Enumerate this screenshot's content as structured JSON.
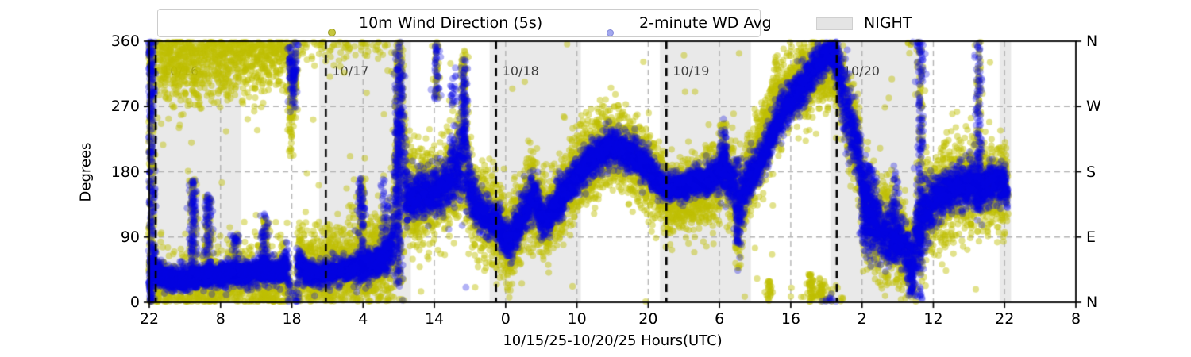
{
  "figure": {
    "xlabel": "10/15/25-10/20/25  Hours(UTC)",
    "ylabel": "Degrees",
    "legend": [
      {
        "label": "10m Wind Direction (5s)",
        "marker_color": "#c6c63e",
        "marker_edge": "#9a9a22"
      },
      {
        "label": "2-minute WD Avg",
        "marker_color": "#a3a8ef",
        "marker_edge": "#8288d8"
      },
      {
        "label": "NIGHT",
        "patch_color": "#e4e4e4",
        "patch_edge": "#cfcfcf"
      }
    ]
  },
  "chart_data": {
    "type": "scatter",
    "title": "",
    "xlabel": "10/15/25-10/20/25  Hours(UTC)",
    "ylabel": "Degrees",
    "x_start": "10/15/25 22:00 UTC",
    "x_span_hours": [
      0,
      130
    ],
    "x_tick_hours": [
      0,
      10,
      20,
      30,
      40,
      50,
      60,
      70,
      80,
      90,
      100,
      110,
      120,
      130
    ],
    "x_tick_labels": [
      "22",
      "8",
      "18",
      "4",
      "14",
      "0",
      "10",
      "20",
      "6",
      "16",
      "2",
      "12",
      "22",
      "8"
    ],
    "ylim": [
      0,
      360
    ],
    "y_ticks": [
      0,
      90,
      180,
      270,
      360
    ],
    "y_tick_labels": [
      "0",
      "90",
      "180",
      "270",
      "360"
    ],
    "right_axis_labels": [
      "N",
      "E",
      "S",
      "W",
      "N"
    ],
    "grid": true,
    "legend_position": "top",
    "series": [
      {
        "name": "10m Wind Direction (5s)",
        "style": "raw-scatter"
      },
      {
        "name": "2-minute WD Avg",
        "style": "avg-scatter"
      }
    ],
    "night_regions_hours": [
      [
        0,
        12.9
      ],
      [
        23.85,
        36.7
      ],
      [
        47.75,
        60.55
      ],
      [
        71.65,
        84.4
      ],
      [
        95.55,
        108.3
      ],
      [
        119.3,
        120.9
      ]
    ],
    "date_lines": [
      {
        "hour": 0.9,
        "label": "10/16"
      },
      {
        "hour": 24.77,
        "label": "10/17"
      },
      {
        "hour": 48.65,
        "label": "10/18"
      },
      {
        "hour": 72.55,
        "label": "10/19"
      },
      {
        "hour": 96.45,
        "label": "10/20"
      }
    ],
    "data_end_hour": 120.4,
    "wd_avg_waypoints": [
      [
        0.0,
        350,
        20,
        35,
        0
      ],
      [
        0.5,
        45,
        12,
        40,
        -30
      ],
      [
        2,
        35,
        8,
        38,
        -45
      ],
      [
        4,
        32,
        8,
        38,
        -48
      ],
      [
        6,
        34,
        8,
        38,
        -45
      ],
      [
        8,
        36,
        8,
        38,
        -45
      ],
      [
        10,
        38,
        8,
        38,
        -45
      ],
      [
        12,
        40,
        8,
        38,
        -42
      ],
      [
        14,
        40,
        8,
        38,
        -40
      ],
      [
        16,
        46,
        9,
        38,
        -42
      ],
      [
        18,
        42,
        9,
        36,
        -40
      ],
      [
        19.4,
        55,
        12,
        36,
        -30
      ],
      [
        19.85,
        300,
        26,
        34,
        0
      ],
      [
        20.5,
        315,
        22,
        32,
        0
      ],
      [
        20.9,
        55,
        12,
        30,
        0
      ],
      [
        22,
        42,
        8,
        28,
        0
      ],
      [
        24,
        38,
        8,
        28,
        0
      ],
      [
        26,
        43,
        8,
        28,
        0
      ],
      [
        28,
        46,
        8,
        30,
        0
      ],
      [
        30,
        49,
        9,
        30,
        0
      ],
      [
        32,
        56,
        10,
        32,
        0
      ],
      [
        34,
        72,
        14,
        38,
        0
      ],
      [
        34.9,
        210,
        55,
        70,
        0
      ],
      [
        35.4,
        295,
        38,
        55,
        0
      ],
      [
        35.8,
        160,
        28,
        45,
        0
      ],
      [
        36.6,
        142,
        15,
        33,
        0
      ],
      [
        38,
        148,
        15,
        33,
        0
      ],
      [
        40,
        152,
        15,
        32,
        0
      ],
      [
        42,
        166,
        18,
        34,
        0
      ],
      [
        43.6,
        190,
        26,
        40,
        0
      ],
      [
        44.15,
        275,
        40,
        50,
        0
      ],
      [
        44.7,
        162,
        22,
        38,
        0
      ],
      [
        45.6,
        136,
        15,
        32,
        0
      ],
      [
        47,
        122,
        13,
        30,
        0
      ],
      [
        48.7,
        108,
        13,
        30,
        0
      ],
      [
        50.5,
        82,
        13,
        30,
        0
      ],
      [
        52,
        112,
        14,
        30,
        0
      ],
      [
        53.9,
        150,
        18,
        32,
        0
      ],
      [
        55.2,
        112,
        13,
        28,
        0
      ],
      [
        56.5,
        124,
        12,
        28,
        0
      ],
      [
        58,
        148,
        12,
        28,
        0
      ],
      [
        60,
        176,
        12,
        28,
        0
      ],
      [
        62,
        197,
        13,
        28,
        0
      ],
      [
        64,
        210,
        13,
        28,
        0
      ],
      [
        65,
        215,
        13,
        28,
        0
      ],
      [
        66,
        210,
        12,
        28,
        0
      ],
      [
        68,
        201,
        12,
        28,
        0
      ],
      [
        70,
        186,
        12,
        27,
        0
      ],
      [
        71.5,
        163,
        10,
        26,
        0
      ],
      [
        73,
        157,
        9,
        25,
        -12
      ],
      [
        75,
        160,
        9,
        25,
        -12
      ],
      [
        77,
        167,
        10,
        26,
        -12
      ],
      [
        79,
        171,
        10,
        27,
        -10
      ],
      [
        80.2,
        178,
        14,
        28,
        0
      ],
      [
        80.6,
        200,
        20,
        30,
        0
      ],
      [
        81.2,
        172,
        13,
        28,
        0
      ],
      [
        82.1,
        162,
        13,
        28,
        0
      ],
      [
        82.55,
        105,
        28,
        38,
        0
      ],
      [
        83.2,
        148,
        16,
        30,
        0
      ],
      [
        85,
        183,
        13,
        28,
        15
      ],
      [
        86.5,
        208,
        13,
        28,
        20
      ],
      [
        88,
        250,
        14,
        28,
        25
      ],
      [
        90,
        277,
        14,
        27,
        20
      ],
      [
        92,
        301,
        14,
        26,
        5
      ],
      [
        93.5,
        326,
        13,
        25,
        -10
      ],
      [
        94.6,
        340,
        12,
        24,
        -15
      ],
      [
        95.6,
        344,
        12,
        24,
        -15
      ],
      [
        96.45,
        330,
        14,
        26,
        -10
      ],
      [
        97.2,
        298,
        25,
        32,
        0
      ],
      [
        98,
        258,
        28,
        34,
        0
      ],
      [
        98.9,
        225,
        22,
        32,
        0
      ],
      [
        99.6,
        208,
        16,
        28,
        0
      ],
      [
        100.1,
        145,
        30,
        40,
        0
      ],
      [
        101,
        122,
        26,
        38,
        0
      ],
      [
        102,
        108,
        20,
        36,
        0
      ],
      [
        103,
        96,
        18,
        36,
        0
      ],
      [
        104,
        93,
        20,
        36,
        0
      ],
      [
        105,
        86,
        18,
        34,
        0
      ],
      [
        106,
        76,
        16,
        32,
        0
      ],
      [
        106.9,
        45,
        18,
        30,
        0
      ],
      [
        107.6,
        92,
        24,
        34,
        0
      ],
      [
        108.5,
        118,
        20,
        34,
        0
      ],
      [
        110,
        138,
        16,
        32,
        0
      ],
      [
        112,
        152,
        15,
        32,
        0
      ],
      [
        114,
        162,
        15,
        32,
        0
      ],
      [
        115.5,
        166,
        16,
        32,
        0
      ],
      [
        117,
        158,
        15,
        31,
        0
      ],
      [
        118.5,
        163,
        14,
        30,
        0
      ],
      [
        120,
        160,
        13,
        28,
        0
      ],
      [
        120.4,
        157,
        13,
        28,
        0
      ]
    ],
    "streak_events": [
      [
        0.25,
        0,
        360,
        "b",
        260
      ],
      [
        6.15,
        30,
        170,
        "b",
        110
      ],
      [
        8.3,
        25,
        148,
        "b",
        90
      ],
      [
        12.1,
        30,
        95,
        "b",
        55
      ],
      [
        16.2,
        30,
        122,
        "b",
        65
      ],
      [
        19.9,
        200,
        355,
        "r",
        60
      ],
      [
        29.8,
        35,
        172,
        "b",
        100
      ],
      [
        33.1,
        45,
        170,
        "a",
        55
      ],
      [
        34.95,
        25,
        360,
        "b",
        200
      ],
      [
        40.3,
        280,
        360,
        "b",
        40
      ],
      [
        42.6,
        200,
        330,
        "a",
        30
      ],
      [
        44.15,
        130,
        360,
        "r",
        90
      ],
      [
        44.15,
        150,
        335,
        "a",
        80
      ],
      [
        57.6,
        110,
        182,
        "a",
        30
      ],
      [
        80.6,
        150,
        242,
        "a",
        55
      ],
      [
        82.55,
        45,
        205,
        "r",
        55
      ],
      [
        82.55,
        80,
        200,
        "a",
        50
      ],
      [
        87,
        0,
        30,
        "r",
        25
      ],
      [
        92.8,
        0,
        40,
        "r",
        45
      ],
      [
        94.3,
        0,
        35,
        "r",
        35
      ],
      [
        100.3,
        80,
        195,
        "a",
        70
      ],
      [
        100.9,
        85,
        190,
        "a",
        55
      ],
      [
        101.6,
        90,
        185,
        "a",
        45
      ],
      [
        104.6,
        55,
        190,
        "a",
        55
      ],
      [
        106.95,
        8,
        80,
        "a",
        45
      ],
      [
        108.15,
        0,
        360,
        "a",
        170
      ],
      [
        108.15,
        60,
        360,
        "r",
        70
      ],
      [
        116.35,
        125,
        360,
        "a",
        110
      ],
      [
        116.35,
        150,
        360,
        "r",
        55
      ]
    ],
    "colors": {
      "raw": "#bfbf00",
      "avg": "#0000e0",
      "night": "#e9e9e9",
      "grid": "#b3b3b3",
      "date_line": "#000000",
      "date_label": "#3f3f3f",
      "axis": "#000000"
    }
  }
}
